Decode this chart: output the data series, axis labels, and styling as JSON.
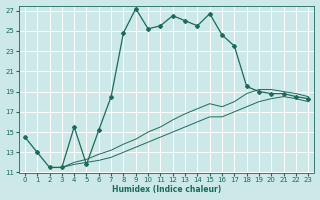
{
  "xlabel": "Humidex (Indice chaleur)",
  "bg_color": "#cde8e8",
  "grid_color": "#ffffff",
  "line_color": "#1a6b5a",
  "xlim": [
    -0.5,
    23.5
  ],
  "ylim": [
    11,
    27.5
  ],
  "xticks": [
    0,
    1,
    2,
    3,
    4,
    5,
    6,
    7,
    8,
    9,
    10,
    11,
    12,
    13,
    14,
    15,
    16,
    17,
    18,
    19,
    20,
    21,
    22,
    23
  ],
  "yticks": [
    11,
    13,
    15,
    17,
    19,
    21,
    23,
    25,
    27
  ],
  "series1_x": [
    0,
    1,
    2,
    3,
    4,
    5,
    6,
    7,
    8,
    9,
    10,
    11,
    12,
    13,
    14,
    15,
    16,
    17,
    18,
    19,
    20,
    21,
    22,
    23
  ],
  "series1_y": [
    14.5,
    13.0,
    11.5,
    11.5,
    15.5,
    11.8,
    15.2,
    18.5,
    24.8,
    27.2,
    25.2,
    25.5,
    26.5,
    26.0,
    25.5,
    26.7,
    24.6,
    23.5,
    19.5,
    19.0,
    18.8,
    18.8,
    18.5,
    18.3
  ],
  "series2_x": [
    2,
    3,
    4,
    5,
    6,
    7,
    8,
    9,
    10,
    11,
    12,
    13,
    14,
    15,
    16,
    17,
    18,
    19,
    20,
    21,
    22,
    23
  ],
  "series2_y": [
    11.5,
    11.5,
    11.8,
    12.0,
    12.2,
    12.5,
    13.0,
    13.5,
    14.0,
    14.5,
    15.0,
    15.5,
    16.0,
    16.5,
    16.5,
    17.0,
    17.5,
    18.0,
    18.3,
    18.5,
    18.3,
    18.0
  ],
  "series3_x": [
    2,
    3,
    4,
    5,
    6,
    7,
    8,
    9,
    10,
    11,
    12,
    13,
    14,
    15,
    16,
    17,
    18,
    19,
    20,
    21,
    22,
    23
  ],
  "series3_y": [
    11.5,
    11.5,
    12.0,
    12.3,
    12.8,
    13.2,
    13.8,
    14.3,
    15.0,
    15.5,
    16.2,
    16.8,
    17.3,
    17.8,
    17.5,
    18.0,
    18.8,
    19.2,
    19.2,
    19.0,
    18.8,
    18.5
  ]
}
